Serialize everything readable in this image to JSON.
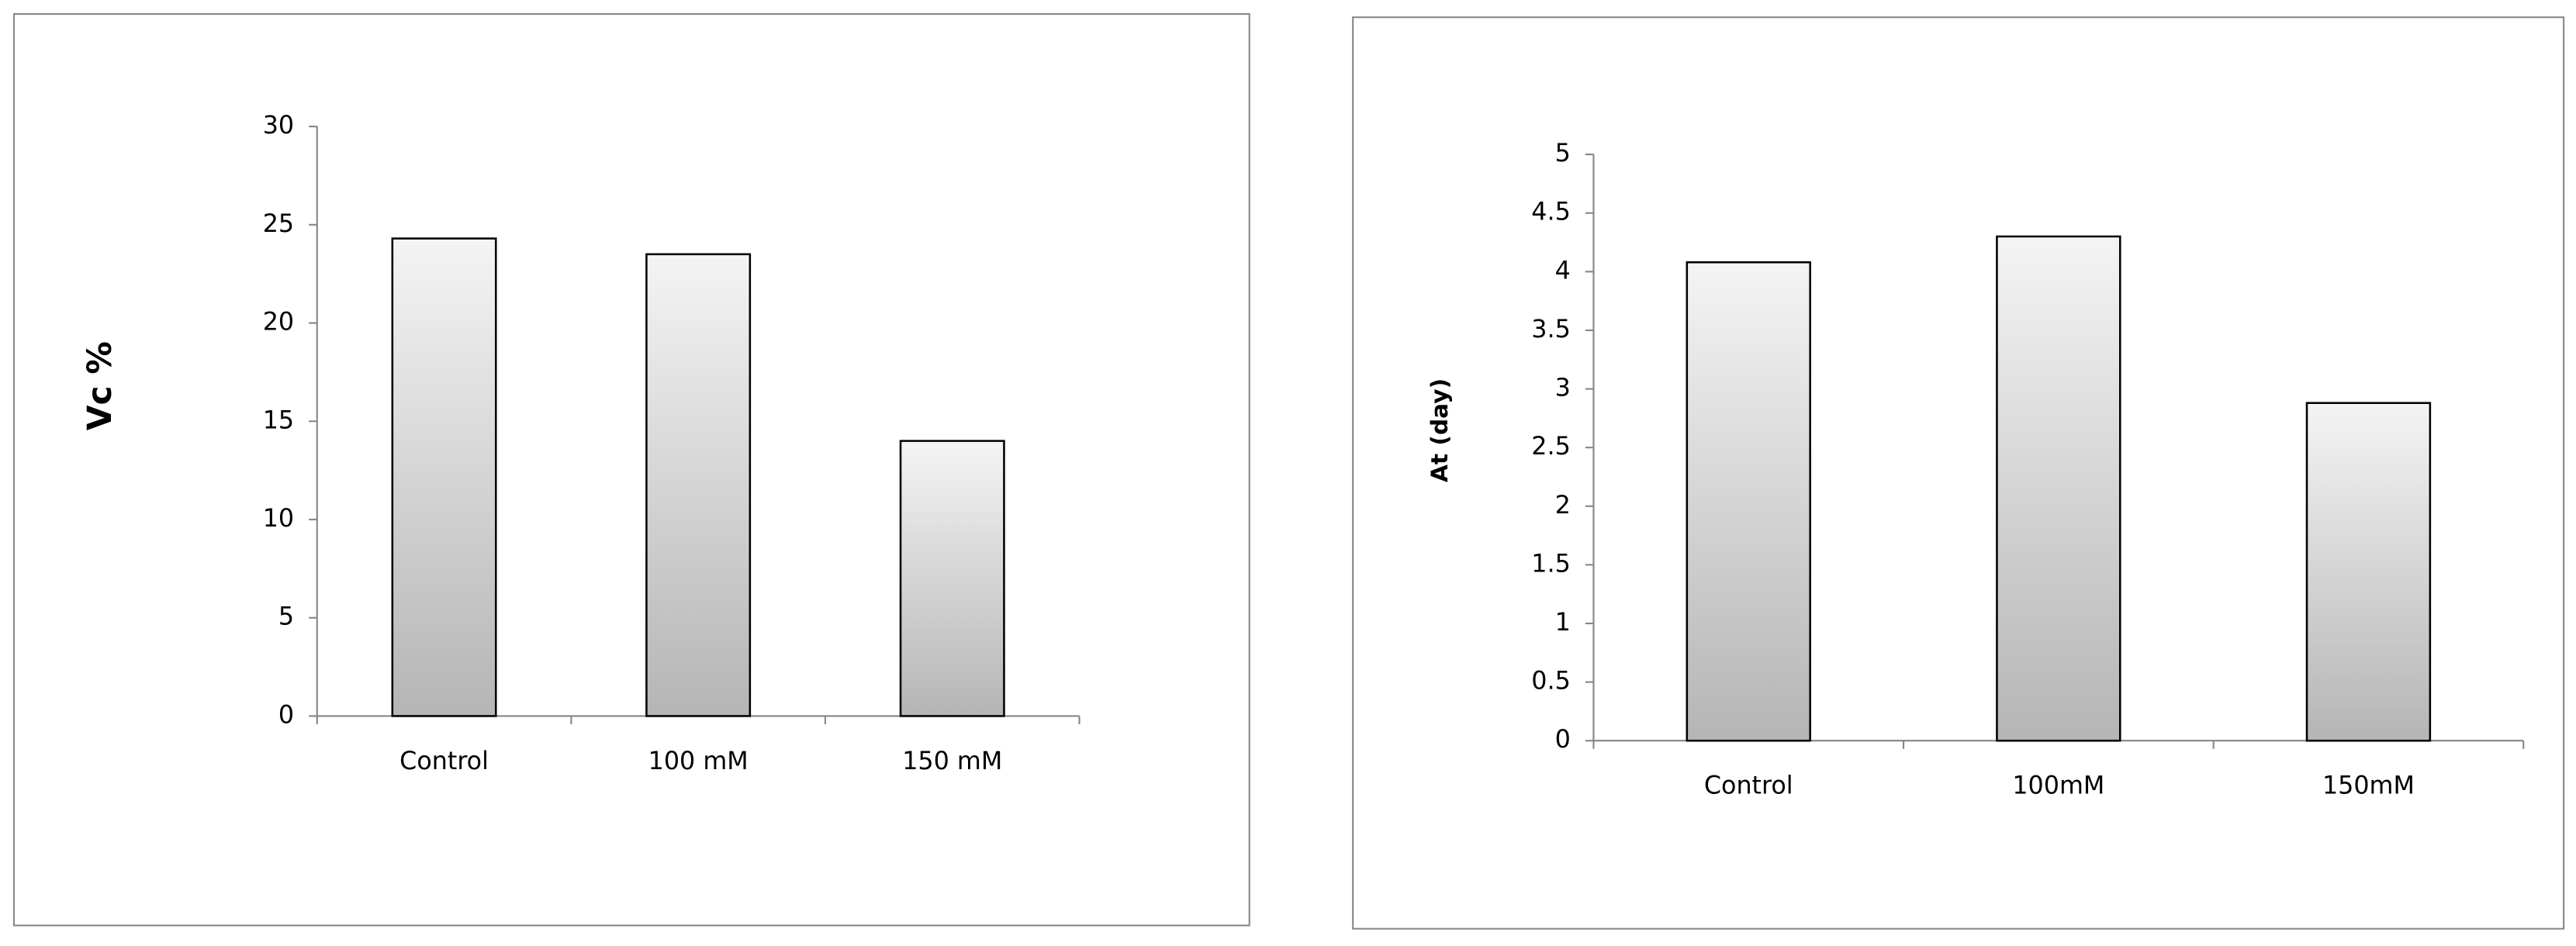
{
  "chart_data": [
    {
      "type": "bar",
      "y_label": "Vc %",
      "categories": [
        "Control",
        "100 mM",
        "150 mM"
      ],
      "values": [
        24.3,
        23.5,
        14
      ],
      "ylim": [
        0,
        30
      ],
      "yticks": [
        0,
        5,
        10,
        15,
        20,
        25,
        30
      ],
      "grid": false
    },
    {
      "type": "bar",
      "y_label": "At (day)",
      "categories": [
        "Control",
        "100mM",
        "150mM"
      ],
      "values": [
        4.08,
        4.3,
        2.88
      ],
      "ylim": [
        0,
        5
      ],
      "yticks": [
        0,
        0.5,
        1,
        1.5,
        2,
        2.5,
        3,
        3.5,
        4,
        4.5,
        5
      ],
      "grid": false
    }
  ]
}
